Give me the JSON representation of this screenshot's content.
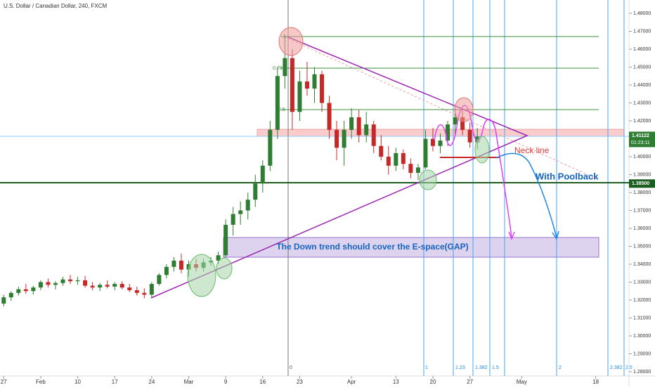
{
  "chart_data": {
    "type": "candlestick",
    "title": "U.S. Dollar / Canadian Dollar, 240, FXCM",
    "up_color": "#2e7d32",
    "down_color": "#c62828",
    "open": [
      1.318,
      1.3215,
      1.324,
      1.326,
      1.325,
      1.327,
      1.33,
      1.3285,
      1.3295,
      1.3315,
      1.3305,
      1.331,
      1.328,
      1.327,
      1.3285,
      1.3275,
      1.329,
      1.327,
      1.3255,
      1.324,
      1.323,
      1.329,
      1.334,
      1.3385,
      1.342,
      1.337,
      1.34,
      1.338,
      1.341,
      1.342,
      1.345,
      1.362,
      1.368,
      1.37,
      1.376,
      1.385,
      1.395,
      1.415,
      1.445,
      1.455,
      1.425,
      1.442,
      1.438,
      1.446,
      1.43,
      1.415,
      1.405,
      1.415,
      1.422,
      1.412,
      1.418,
      1.406,
      1.4,
      1.395,
      1.402,
      1.396,
      1.391,
      1.394,
      1.41,
      1.406,
      1.409,
      1.418,
      1.422,
      1.415,
      1.408
    ],
    "high": [
      1.323,
      1.325,
      1.3275,
      1.329,
      1.328,
      1.331,
      1.332,
      1.3305,
      1.333,
      1.334,
      1.333,
      1.3335,
      1.33,
      1.3295,
      1.331,
      1.33,
      1.3305,
      1.329,
      1.3275,
      1.3265,
      1.33,
      1.335,
      1.34,
      1.344,
      1.346,
      1.342,
      1.343,
      1.343,
      1.344,
      1.347,
      1.365,
      1.372,
      1.375,
      1.38,
      1.39,
      1.398,
      1.42,
      1.45,
      1.467,
      1.46,
      1.448,
      1.453,
      1.45,
      1.448,
      1.434,
      1.42,
      1.42,
      1.427,
      1.426,
      1.425,
      1.42,
      1.412,
      1.406,
      1.405,
      1.404,
      1.399,
      1.396,
      1.415,
      1.416,
      1.413,
      1.42,
      1.427,
      1.426,
      1.419,
      1.416
    ],
    "low": [
      1.3165,
      1.3195,
      1.3225,
      1.3235,
      1.323,
      1.3255,
      1.327,
      1.326,
      1.328,
      1.329,
      1.3285,
      1.327,
      1.3255,
      1.325,
      1.3265,
      1.3255,
      1.326,
      1.3245,
      1.3225,
      1.321,
      1.3215,
      1.328,
      1.332,
      1.336,
      1.335,
      1.333,
      1.336,
      1.336,
      1.339,
      1.34,
      1.344,
      1.356,
      1.362,
      1.365,
      1.372,
      1.38,
      1.392,
      1.41,
      1.438,
      1.415,
      1.42,
      1.434,
      1.43,
      1.425,
      1.41,
      1.398,
      1.395,
      1.41,
      1.408,
      1.408,
      1.402,
      1.398,
      1.39,
      1.392,
      1.393,
      1.388,
      1.387,
      1.393,
      1.403,
      1.402,
      1.406,
      1.412,
      1.412,
      1.405,
      1.404
    ],
    "close": [
      1.3215,
      1.324,
      1.326,
      1.325,
      1.327,
      1.33,
      1.3285,
      1.3295,
      1.3315,
      1.3305,
      1.331,
      1.328,
      1.327,
      1.3285,
      1.3275,
      1.329,
      1.327,
      1.3255,
      1.324,
      1.323,
      1.329,
      1.334,
      1.3385,
      1.342,
      1.337,
      1.34,
      1.338,
      1.341,
      1.342,
      1.345,
      1.362,
      1.368,
      1.37,
      1.376,
      1.385,
      1.395,
      1.415,
      1.445,
      1.455,
      1.425,
      1.442,
      1.438,
      1.446,
      1.43,
      1.415,
      1.405,
      1.415,
      1.422,
      1.412,
      1.418,
      1.406,
      1.4,
      1.395,
      1.402,
      1.396,
      1.391,
      1.394,
      1.41,
      1.406,
      1.409,
      1.418,
      1.422,
      1.415,
      1.408,
      1.4112
    ],
    "xlim": [
      -0.5,
      84.5
    ],
    "xticks": [
      {
        "value": 0,
        "label": "27"
      },
      {
        "value": 5,
        "label": "Feb"
      },
      {
        "value": 10,
        "label": "10"
      },
      {
        "value": 15,
        "label": "17"
      },
      {
        "value": 20,
        "label": "24"
      },
      {
        "value": 25,
        "label": "Mar"
      },
      {
        "value": 30,
        "label": "9"
      },
      {
        "value": 35,
        "label": "16"
      },
      {
        "value": 40,
        "label": "23"
      },
      {
        "value": 47,
        "label": "Apr"
      },
      {
        "value": 53,
        "label": "13"
      },
      {
        "value": 58,
        "label": "20"
      },
      {
        "value": 63,
        "label": "27"
      },
      {
        "value": 70,
        "label": "May"
      },
      {
        "value": 80,
        "label": "18"
      }
    ],
    "ylim": [
      1.28,
      1.48
    ],
    "yticks": [
      {
        "value": 1.28,
        "label": "1.28000"
      },
      {
        "value": 1.29,
        "label": "1.29000"
      },
      {
        "value": 1.3,
        "label": "1.30000"
      },
      {
        "value": 1.31,
        "label": "1.31000"
      },
      {
        "value": 1.32,
        "label": "1.32000"
      },
      {
        "value": 1.33,
        "label": "1.33000"
      },
      {
        "value": 1.34,
        "label": "1.34000"
      },
      {
        "value": 1.35,
        "label": "1.35000"
      },
      {
        "value": 1.36,
        "label": "1.36000"
      },
      {
        "value": 1.37,
        "label": "1.37000"
      },
      {
        "value": 1.38,
        "label": "1.38000"
      },
      {
        "value": 1.39,
        "label": "1.39000"
      },
      {
        "value": 1.4,
        "label": "1.40000"
      },
      {
        "value": 1.41,
        "label": "1.41000"
      },
      {
        "value": 1.42,
        "label": "1.42000"
      },
      {
        "value": 1.43,
        "label": "1.43000"
      },
      {
        "value": 1.44,
        "label": "1.44000"
      },
      {
        "value": 1.45,
        "label": "1.45000"
      },
      {
        "value": 1.46,
        "label": "1.46000"
      },
      {
        "value": 1.47,
        "label": "1.47000"
      },
      {
        "value": 1.48,
        "label": "1.48000"
      }
    ],
    "last_price": {
      "value": 1.41122,
      "label": "1.41122"
    },
    "countdown": "01:23:11",
    "level": {
      "value": 1.385,
      "label": "1.38500"
    },
    "fib_labels": [
      "1",
      "0.786",
      "0.5"
    ],
    "time_fib_labels": [
      "0",
      "1",
      "1.23",
      "1.382",
      "1.5",
      "2",
      "2.382",
      "2.5"
    ],
    "annotations": {
      "neck": "Neck line",
      "pullback": "With Poolback",
      "gap": "The Down trend should cover the E-space(GAP)"
    }
  }
}
